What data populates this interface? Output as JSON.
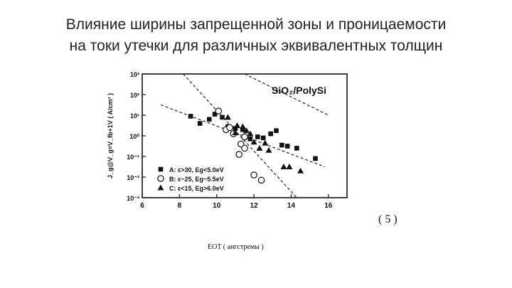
{
  "slide": {
    "title_line1": "Влияние ширины запрещенной зоны и проницаемости",
    "title_line2": "на токи утечки для различных эквивалентных толщин",
    "figure_number": "( 5 )",
    "x_caption": "EOT ( ангстремы )"
  },
  "chart_data": {
    "type": "scatter",
    "title": "SiO₂/PolySi",
    "xlabel": "",
    "ylabel": "J_g@V_g=V_fb+1V ( A/cm² )",
    "xlim": [
      6,
      17
    ],
    "ylim": [
      -3,
      3
    ],
    "y_scale": "log",
    "x_ticks": [
      "6",
      "8",
      "10",
      "12",
      "14",
      "16"
    ],
    "y_ticks": [
      "10⁻³",
      "10⁻²",
      "10⁻¹",
      "10⁰",
      "10¹",
      "10²",
      "10³"
    ],
    "legend_position": "bottom-left",
    "grid": false,
    "series": [
      {
        "name": "A: ε>30, Eg<5.0eV",
        "marker": "square",
        "points": [
          [
            8.6,
            0.95
          ],
          [
            9.1,
            0.6
          ],
          [
            9.6,
            0.8
          ],
          [
            9.9,
            1.05
          ],
          [
            10.3,
            0.9
          ],
          [
            10.6,
            0.45
          ],
          [
            11.0,
            0.35
          ],
          [
            11.4,
            0.3
          ],
          [
            11.8,
            -0.15
          ],
          [
            12.2,
            -0.05
          ],
          [
            12.5,
            -0.1
          ],
          [
            12.9,
            0.1
          ],
          [
            13.2,
            0.25
          ],
          [
            13.5,
            -0.45
          ],
          [
            13.8,
            -0.5
          ],
          [
            14.3,
            -0.6
          ],
          [
            15.3,
            -1.1
          ]
        ]
      },
      {
        "name": "B: ε~25, Eg~5.5eV",
        "marker": "circle",
        "points": [
          [
            10.1,
            1.2
          ],
          [
            10.5,
            0.3
          ],
          [
            10.7,
            0.4
          ],
          [
            10.9,
            0.1
          ],
          [
            11.3,
            -0.4
          ],
          [
            11.5,
            -0.6
          ],
          [
            11.2,
            -0.9
          ],
          [
            12.0,
            -1.9
          ],
          [
            12.4,
            -2.15
          ],
          [
            11.5,
            -0.05
          ]
        ]
      },
      {
        "name": "C: ε<15, Eg>6.0eV",
        "marker": "triangle",
        "points": [
          [
            10.6,
            0.9
          ],
          [
            11.1,
            0.5
          ],
          [
            11.4,
            0.45
          ],
          [
            11.6,
            0.25
          ],
          [
            11.0,
            0.15
          ],
          [
            12.0,
            -0.3
          ],
          [
            12.3,
            -0.6
          ],
          [
            12.6,
            -0.35
          ],
          [
            13.6,
            -1.5
          ],
          [
            13.9,
            -1.5
          ],
          [
            14.5,
            -1.7
          ],
          [
            11.8,
            0.1
          ],
          [
            12.8,
            -0.7
          ]
        ]
      }
    ],
    "trend_lines": [
      {
        "from": [
          7.0,
          1.5
        ],
        "to": [
          15.8,
          -1.5
        ]
      },
      {
        "from": [
          8.2,
          3.0
        ],
        "to": [
          14.3,
          -3.0
        ]
      },
      {
        "from": [
          11.5,
          3.0
        ],
        "to": [
          16.0,
          1.0
        ]
      }
    ],
    "colors": {
      "axis": "#111111",
      "marker": "#111111",
      "line": "#222222"
    }
  }
}
